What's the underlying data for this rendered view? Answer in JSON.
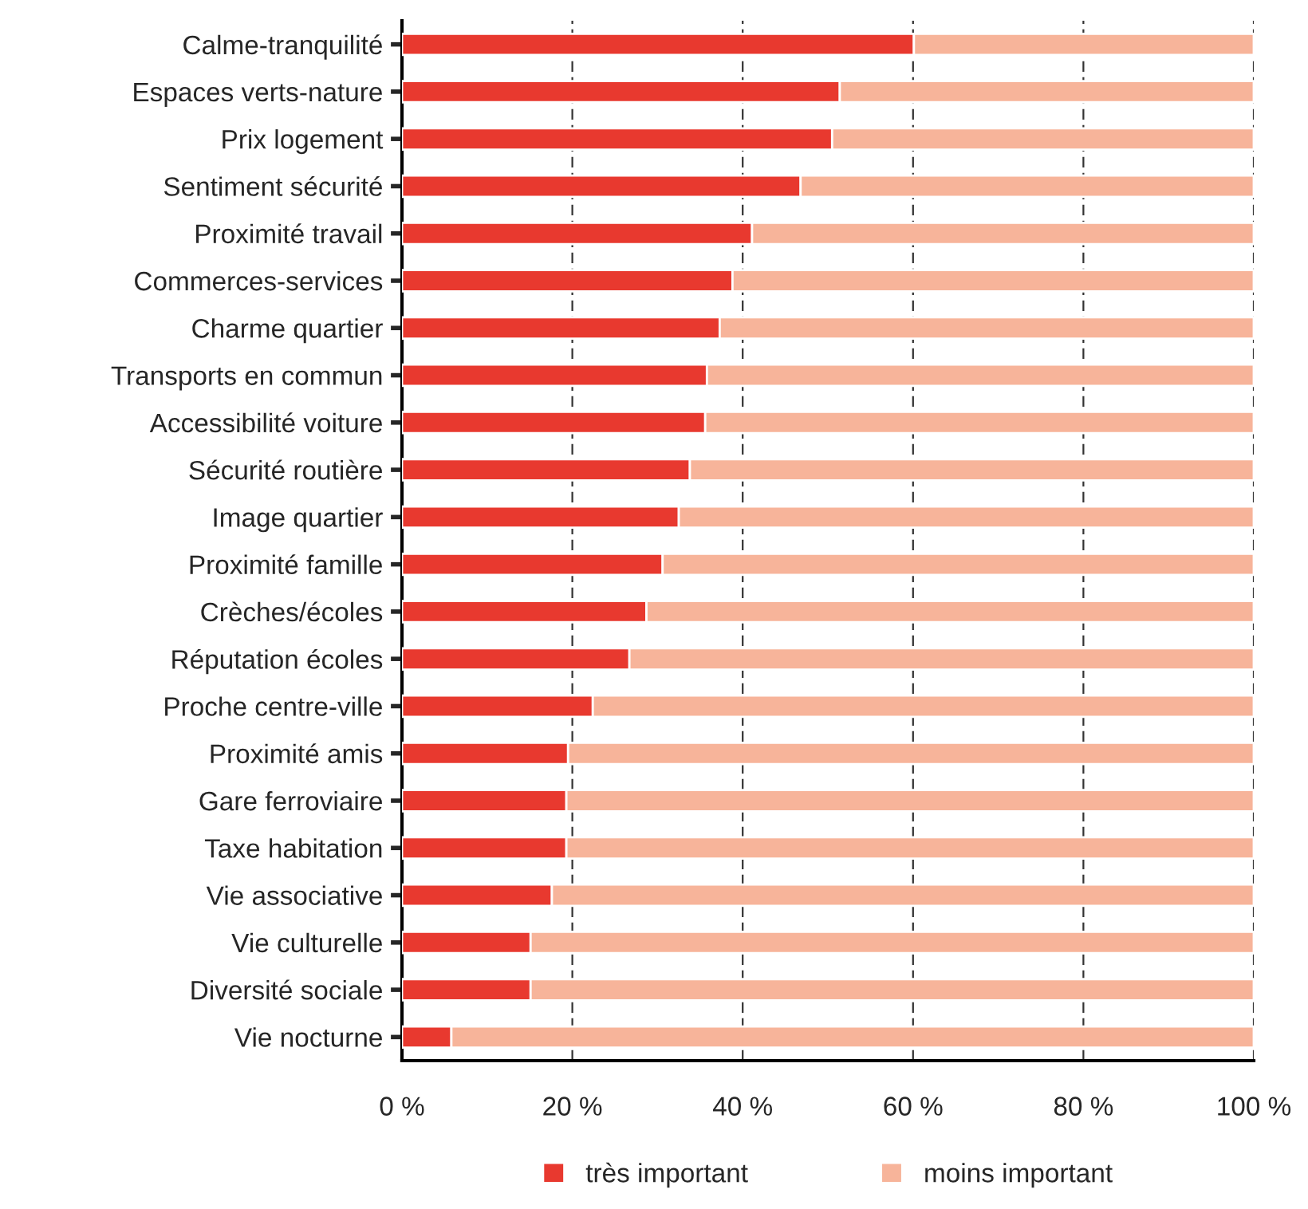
{
  "chart_data": {
    "type": "bar",
    "orientation": "horizontal",
    "stacked": true,
    "categories": [
      "Calme-tranquilité",
      "Espaces verts-nature",
      "Prix logement",
      "Sentiment sécurité",
      "Proximité travail",
      "Commerces-services",
      "Charme quartier",
      "Transports en commun",
      "Accessibilité voiture",
      "Sécurité routière",
      "Image quartier",
      "Proximité famille",
      "Crèches/écoles",
      "Réputation écoles",
      "Proche centre-ville",
      "Proximité amis",
      "Gare ferroviaire",
      "Taxe habitation",
      "Vie associative",
      "Vie culturelle",
      "Diversité sociale",
      "Vie nocturne"
    ],
    "series": [
      {
        "name": "très important",
        "color": "#e8392f",
        "values": [
          60.1,
          51.4,
          50.5,
          46.8,
          41.1,
          38.8,
          37.3,
          35.8,
          35.6,
          33.8,
          32.5,
          30.6,
          28.7,
          26.7,
          22.4,
          19.5,
          19.3,
          19.3,
          17.6,
          15.1,
          15.1,
          5.8
        ]
      },
      {
        "name": "moins important",
        "color": "#f7b49a",
        "values": [
          39.9,
          48.6,
          49.5,
          53.2,
          58.9,
          61.2,
          62.7,
          64.2,
          64.4,
          66.2,
          67.5,
          69.4,
          71.3,
          73.3,
          77.6,
          80.5,
          80.7,
          80.7,
          82.4,
          84.9,
          84.9,
          94.2
        ]
      }
    ],
    "xlim": [
      0,
      100
    ],
    "xticks": [
      {
        "value": 0,
        "label": "0 %"
      },
      {
        "value": 20,
        "label": "20 %"
      },
      {
        "value": 40,
        "label": "40 %"
      },
      {
        "value": 60,
        "label": "60 %"
      },
      {
        "value": 80,
        "label": "80 %"
      },
      {
        "value": 100,
        "label": "100 %"
      }
    ],
    "grid": "x",
    "legend": "bottom"
  }
}
